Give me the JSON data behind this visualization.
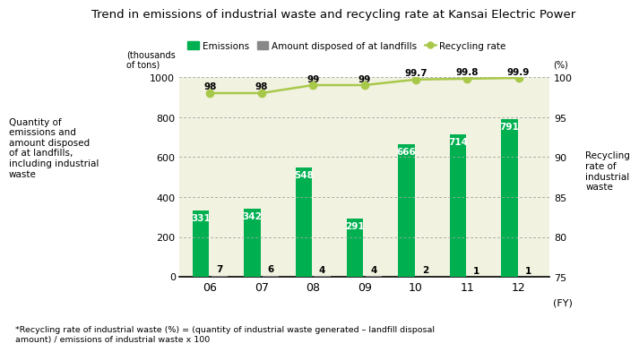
{
  "title": "Trend in emissions of industrial waste and recycling rate at Kansai Electric Power",
  "years": [
    "06",
    "07",
    "08",
    "09",
    "10",
    "11",
    "12"
  ],
  "emissions": [
    331,
    342,
    548,
    291,
    666,
    714,
    791
  ],
  "landfill": [
    7,
    6,
    4,
    4,
    2,
    1,
    1
  ],
  "recycling_rate": [
    98,
    98,
    99,
    99,
    99.7,
    99.8,
    99.9
  ],
  "bar_color_green": "#00b050",
  "bar_color_gray": "#888888",
  "line_color": "#a8c84a",
  "marker_color": "#a8c84a",
  "bg_color": "#f2f2e0",
  "left_ylabel": "(thousands\nof tons)",
  "right_ylabel": "(%)",
  "left_axis_label": "Quantity of\nemissions and\namount disposed\nof at landfills,\nincluding industrial\nwaste",
  "right_axis_label": "Recycling\nrate of\nindustrial\nwaste",
  "xlabel": "(FY)",
  "ylim_left": [
    0,
    1000
  ],
  "ylim_right": [
    75,
    100
  ],
  "yticks_left": [
    0,
    200,
    400,
    600,
    800,
    1000
  ],
  "yticks_right": [
    75,
    80,
    85,
    90,
    95,
    100
  ],
  "footnote": "*Recycling rate of industrial waste (%) = (quantity of industrial waste generated – landfill disposal\namount) / emissions of industrial waste x 100",
  "legend_labels": [
    "Emissions",
    "Amount disposed of at landfills",
    "Recycling rate"
  ]
}
